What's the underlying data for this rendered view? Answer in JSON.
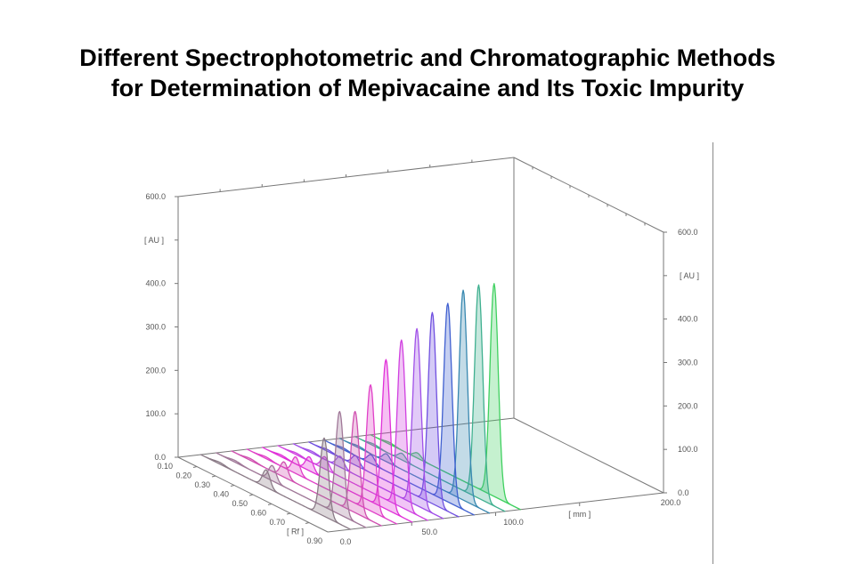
{
  "title_line1": "Different Spectrophotometric and Chromatographic Methods",
  "title_line2": "for Determination of Mepivacaine and Its Toxic Impurity",
  "chart_data": {
    "type": "line",
    "subtype": "3d-densitogram",
    "z_axis": {
      "label": "[ AU ]",
      "range": [
        0,
        600
      ],
      "ticks": [
        "0.0",
        "100.0",
        "200.0",
        "300.0",
        "400.0",
        "600.0"
      ]
    },
    "rf_axis": {
      "label": "[ Rf ]",
      "range": [
        0.1,
        0.9
      ],
      "ticks": [
        "0.10",
        "0.20",
        "0.30",
        "0.40",
        "0.50",
        "0.60",
        "0.70",
        "0.90"
      ]
    },
    "mm_axis": {
      "label": "[ mm ]",
      "range": [
        0,
        200
      ],
      "ticks": [
        "0.0",
        "50.0",
        "100.0",
        "200.0"
      ]
    },
    "tracks": [
      {
        "mm": 13.5,
        "main_rf": 0.76,
        "main_au": 180,
        "impurity_rf": 0.45,
        "impurity_au": 40,
        "color": "#8a7a86"
      },
      {
        "mm": 22.7,
        "main_rf": 0.76,
        "main_au": 237,
        "impurity_rf": 0.4,
        "impurity_au": 35,
        "color": "#a07898"
      },
      {
        "mm": 31.9,
        "main_rf": 0.76,
        "main_au": 233,
        "impurity_rf": 0.38,
        "impurity_au": 35,
        "color": "#d050b0"
      },
      {
        "mm": 41.1,
        "main_rf": 0.76,
        "main_au": 290,
        "impurity_rf": 0.36,
        "impurity_au": 38,
        "color": "#e040c8"
      },
      {
        "mm": 50.3,
        "main_rf": 0.76,
        "main_au": 344,
        "impurity_rf": 0.35,
        "impurity_au": 32,
        "color": "#e030d8"
      },
      {
        "mm": 59.5,
        "main_rf": 0.76,
        "main_au": 385,
        "impurity_rf": 0.35,
        "impurity_au": 28,
        "color": "#d040e0"
      },
      {
        "mm": 68.7,
        "main_rf": 0.76,
        "main_au": 407,
        "impurity_rf": 0.35,
        "impurity_au": 25,
        "color": "#a050e8"
      },
      {
        "mm": 77.9,
        "main_rf": 0.76,
        "main_au": 440,
        "impurity_rf": 0.35,
        "impurity_au": 22,
        "color": "#7050e0"
      },
      {
        "mm": 87.1,
        "main_rf": 0.76,
        "main_au": 457,
        "impurity_rf": 0.35,
        "impurity_au": 20,
        "color": "#4060d0"
      },
      {
        "mm": 96.3,
        "main_rf": 0.76,
        "main_au": 483,
        "impurity_rf": 0.35,
        "impurity_au": 18,
        "color": "#3888b0"
      },
      {
        "mm": 105.5,
        "main_rf": 0.76,
        "main_au": 491,
        "impurity_rf": 0.35,
        "impurity_au": 15,
        "color": "#40b090"
      },
      {
        "mm": 114.7,
        "main_rf": 0.76,
        "main_au": 490,
        "impurity_rf": 0.35,
        "impurity_au": 12,
        "color": "#40d060"
      }
    ]
  }
}
